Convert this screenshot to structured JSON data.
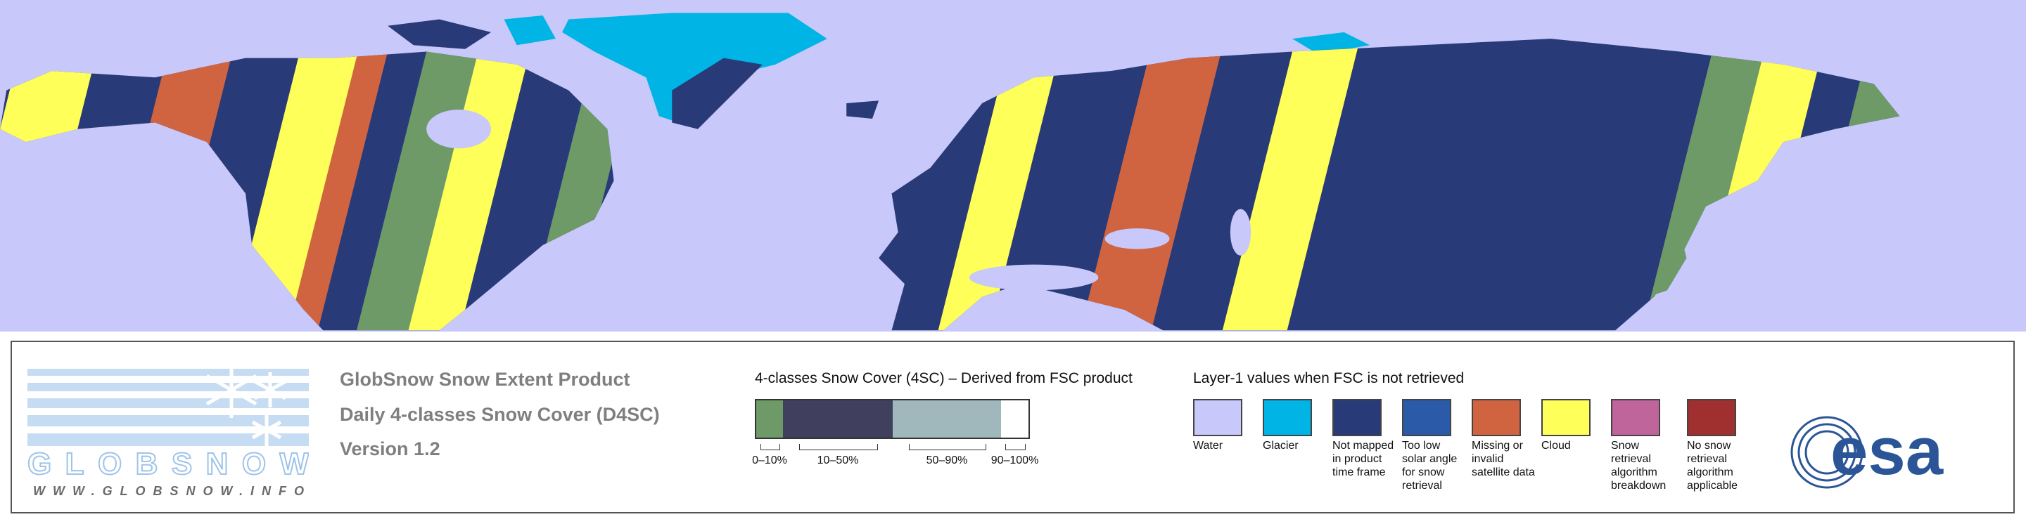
{
  "logo": {
    "name": "GLOBSNOW",
    "url": "WWW.GLOBSNOW.INFO"
  },
  "product": {
    "title": "GlobSnow Snow Extent Product",
    "subtitle": "Daily 4-classes Snow Cover (D4SC)",
    "version": "Version 1.2"
  },
  "snow_cover_legend": {
    "title": "4-classes Snow Cover (4SC) – Derived from FSC product",
    "classes": [
      {
        "label": "0–10%",
        "color": "#6e9a68"
      },
      {
        "label": "10–50%",
        "color": "#40405e"
      },
      {
        "label": "50–90%",
        "color": "#a0b8bc"
      },
      {
        "label": "90–100%",
        "color": "#ffffff"
      }
    ]
  },
  "layer1_legend": {
    "title": "Layer-1 values when FSC is not retrieved",
    "items": [
      {
        "label": "Water",
        "color": "#c8c8fa"
      },
      {
        "label": "Glacier",
        "color": "#00b4e6"
      },
      {
        "label": "Not mapped in product time frame",
        "color": "#283a78"
      },
      {
        "label": "Too low solar angle for snow retrieval",
        "color": "#2a5aa8"
      },
      {
        "label": "Missing or invalid satellite data",
        "color": "#d06440"
      },
      {
        "label": "Cloud",
        "color": "#ffff5a"
      },
      {
        "label": "Snow retrieval algorithm breakdown",
        "color": "#c0649c"
      },
      {
        "label": "No snow retrieval algorithm applicable",
        "color": "#a03030"
      }
    ]
  },
  "esa_logo": "esa"
}
